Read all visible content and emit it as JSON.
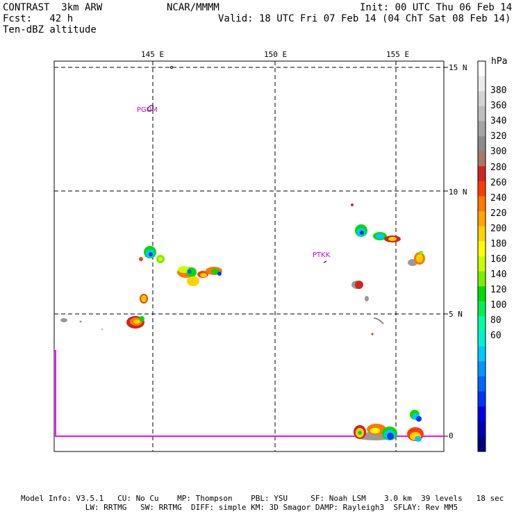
{
  "header": {
    "model": "CONTRAST  3km ARW",
    "center": "NCAR/MMMM",
    "init": "Init: 00 UTC Thu 06 Feb 14",
    "fcst": "Fcst:   42 h",
    "valid": "Valid: 18 UTC Fri 07 Feb 14 (04 ChT Sat 08 Feb 14)",
    "field": "Ten-dBZ altitude"
  },
  "axes": {
    "lon_labels": [
      "145 E",
      "150 E",
      "155 E"
    ],
    "lat_labels": [
      "15 N",
      "10 N",
      "5 N",
      "0"
    ]
  },
  "stations": [
    "PGUM",
    "PTKK"
  ],
  "colorbar": {
    "unit": "hPa",
    "labels": [
      "380",
      "360",
      "340",
      "320",
      "300",
      "280",
      "260",
      "240",
      "220",
      "200",
      "180",
      "160",
      "140",
      "120",
      "100",
      "80",
      "60"
    ],
    "colors": [
      "#ffffff",
      "#ebebeb",
      "#d2d2d2",
      "#bebebe",
      "#a5a5a5",
      "#8c8c8c",
      "#a87868",
      "#d22323",
      "#ff3c00",
      "#ff7800",
      "#ffa500",
      "#ffd200",
      "#ffff00",
      "#c8ff00",
      "#78f000",
      "#00dc00",
      "#00f050",
      "#00ffa0",
      "#00f0d2",
      "#00c8ff",
      "#0096ff",
      "#0064ff",
      "#0032ff",
      "#0000e6",
      "#0000b4",
      "#000080"
    ]
  },
  "footer": {
    "line1": "Model Info: V3.5.1   CU: No Cu    MP: Thompson    PBL: YSU     SF: Noah LSM    3.0 km  39 levels   18 sec",
    "line2": "              LW: RRTMG   SW: RRTMG  DIFF: simple KM: 3D Smagor DAMP: Rayleigh3  SFLAY: Rev MM5"
  }
}
